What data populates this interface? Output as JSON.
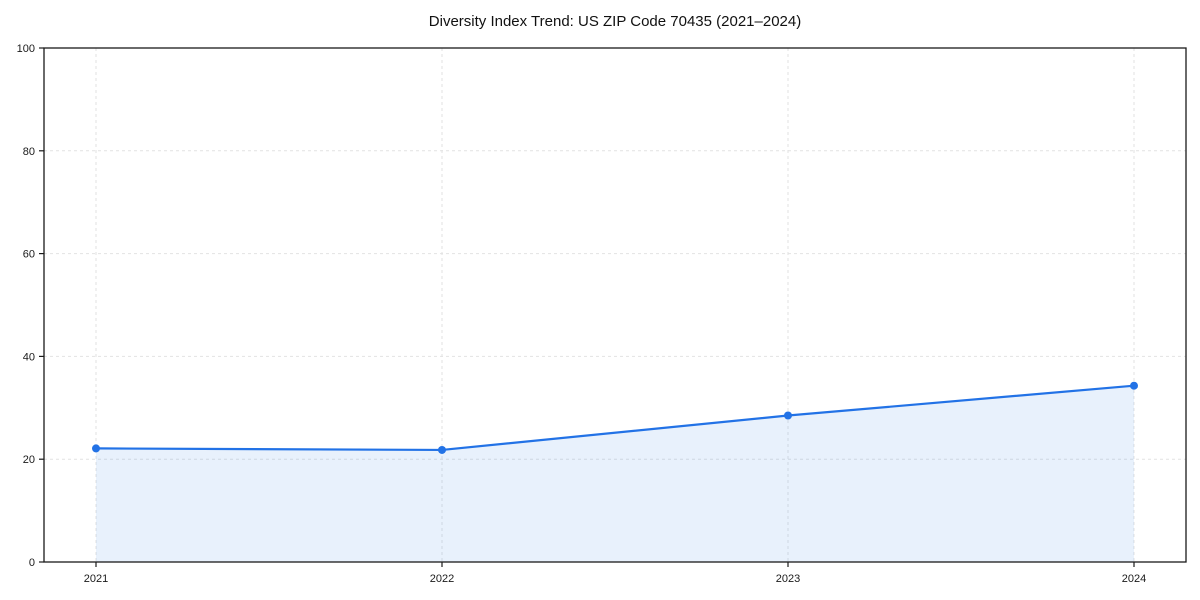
{
  "chart_data": {
    "type": "line",
    "title": "Diversity Index Trend: US ZIP Code 70435 (2021–2024)",
    "series_name": "Diversity Index",
    "x": [
      "2021",
      "2022",
      "2023",
      "2024"
    ],
    "values": [
      22.1,
      21.8,
      28.5,
      34.3
    ],
    "xlabel": "",
    "ylabel": "",
    "ylim": [
      0,
      100
    ],
    "yticks": [
      0,
      20,
      40,
      60,
      80,
      100
    ],
    "grid": true,
    "grid_style": "dashed",
    "legend": "none",
    "area_fill": true,
    "markers": true,
    "line_color": "#2272e6",
    "fill_color": "rgba(34, 114, 230, 0.10)",
    "grid_color": "#e2e2e2",
    "axis_color": "#1a1a1a",
    "tick_label_color": "#1a1a1a",
    "background": "#ffffff"
  }
}
